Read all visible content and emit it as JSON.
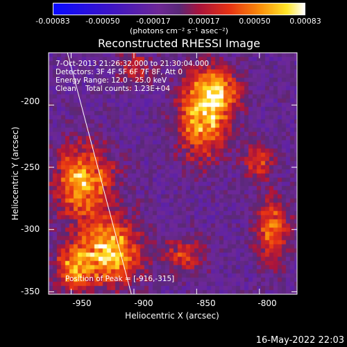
{
  "colorbar": {
    "ticks": [
      "-0.00083",
      "-0.00050",
      "-0.00017",
      "0.00017",
      "0.00050",
      "0.00083"
    ],
    "unit": "(photons cm⁻² s⁻¹ asec⁻²)"
  },
  "chart_data": {
    "type": "heatmap",
    "title": "Reconstructed RHESSI Image",
    "xlabel": "Heliocentric X (arcsec)",
    "ylabel": "Heliocentric Y (arcsec)",
    "xlim": [
      -968,
      -770
    ],
    "ylim": [
      -352,
      -158
    ],
    "xticks": [
      -950,
      -900,
      -850,
      -800
    ],
    "xtick_labels": [
      "-950",
      "-900",
      "-850",
      "-800"
    ],
    "yticks": [
      -200,
      -250,
      -300,
      -350
    ],
    "ytick_labels": [
      "-200",
      "-250",
      "-300",
      "-350"
    ],
    "zlim": [
      -0.00083,
      0.00083
    ],
    "peak": [
      -916,
      -315
    ],
    "limb_line": [
      [
        -953,
        -158
      ],
      [
        -902,
        -352
      ]
    ],
    "sources": [
      {
        "x": -845,
        "y": -210,
        "amp": 0.00078,
        "sx": 14,
        "sy": 22
      },
      {
        "x": -832,
        "y": -188,
        "amp": 0.00055,
        "sx": 12,
        "sy": 12
      },
      {
        "x": -940,
        "y": -262,
        "amp": 0.00075,
        "sx": 16,
        "sy": 20
      },
      {
        "x": -918,
        "y": -318,
        "amp": 0.00083,
        "sx": 16,
        "sy": 18
      },
      {
        "x": -948,
        "y": -330,
        "amp": 0.0006,
        "sx": 10,
        "sy": 14
      },
      {
        "x": -790,
        "y": -300,
        "amp": 0.0006,
        "sx": 9,
        "sy": 18
      },
      {
        "x": -800,
        "y": -245,
        "amp": 0.00045,
        "sx": 8,
        "sy": 10
      },
      {
        "x": -860,
        "y": -320,
        "amp": 0.0004,
        "sx": 12,
        "sy": 10
      },
      {
        "x": -900,
        "y": -170,
        "amp": 0.00035,
        "sx": 10,
        "sy": 10
      }
    ]
  },
  "info": {
    "line1": "7-Oct-2013 21:26:32.000 to 21:30:04.000",
    "line2": "Detectors: 3F 4F 5F 6F 7F 8F, Att 0",
    "line3": "Energy Range: 12.0 - 25.0 keV",
    "line4": "Clean    Total counts: 1.23E+04"
  },
  "peak_label": "Position of Peak = [-916,-315]",
  "timestamp": "16-May-2022 22:03"
}
